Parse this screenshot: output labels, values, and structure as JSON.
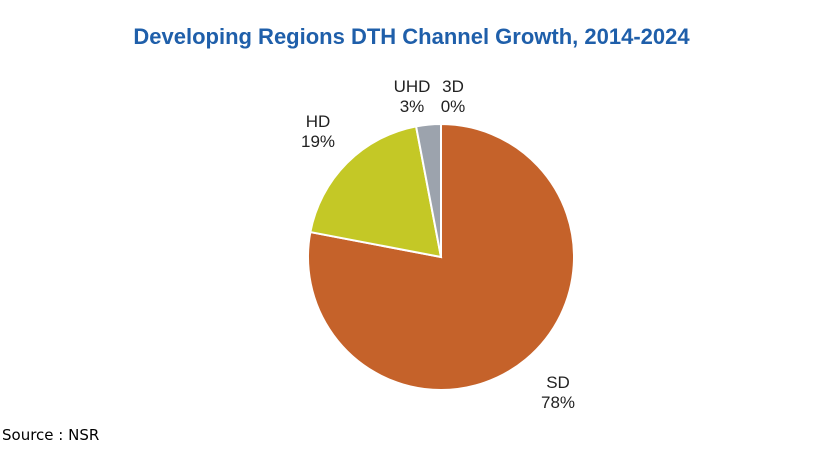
{
  "chart_data": {
    "type": "pie",
    "title": "Developing Regions DTH Channel Growth, 2014-2024",
    "source": "Source : NSR",
    "slices": [
      {
        "label": "SD",
        "value": 78,
        "value_label": "78%",
        "color": "#C5622A"
      },
      {
        "label": "HD",
        "value": 19,
        "value_label": "19%",
        "color": "#C4C826"
      },
      {
        "label": "UHD",
        "value": 3,
        "value_label": "3%",
        "color": "#9CA3AD"
      },
      {
        "label": "3D",
        "value": 0,
        "value_label": "0%",
        "color": "#4F81BD"
      }
    ],
    "legend": "none"
  }
}
